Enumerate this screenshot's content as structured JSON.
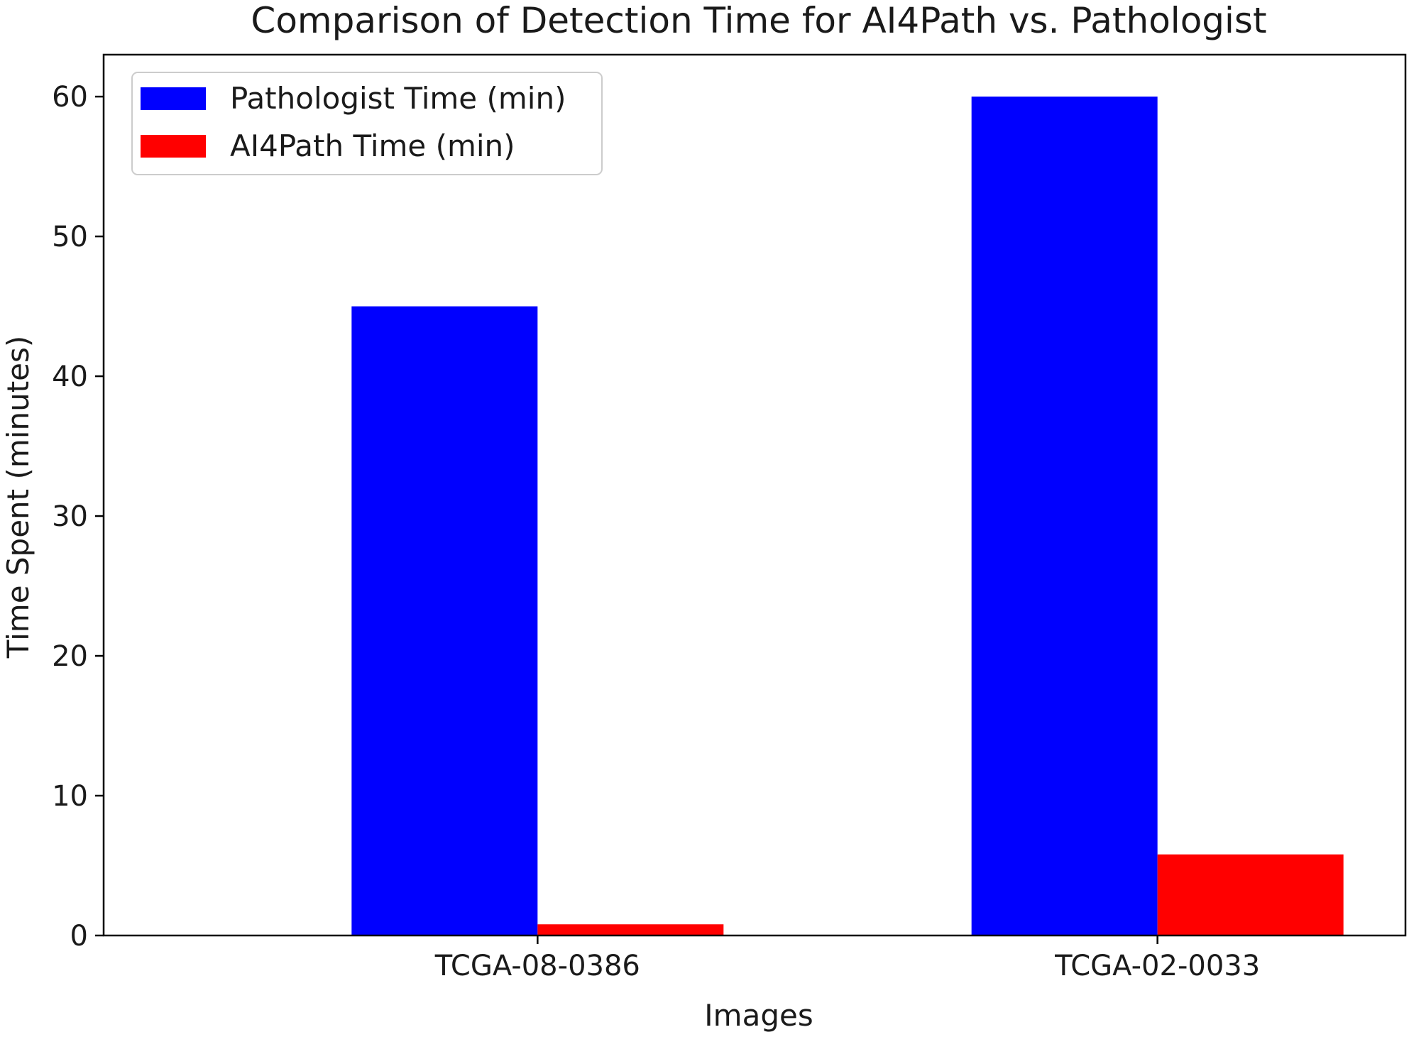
{
  "chart_data": {
    "type": "bar",
    "title": "Comparison of Detection Time for AI4Path vs. Pathologist",
    "xlabel": "Images",
    "ylabel": "Time Spent (minutes)",
    "categories": [
      "TCGA-08-0386",
      "TCGA-02-0033"
    ],
    "series": [
      {
        "name": "Pathologist Time (min)",
        "values": [
          45,
          60
        ],
        "color": "#0000ff"
      },
      {
        "name": "AI4Path Time (min)",
        "values": [
          0.8,
          5.8
        ],
        "color": "#ff0000"
      }
    ],
    "ylim": [
      0,
      63
    ],
    "yticks": [
      0,
      10,
      20,
      30,
      40,
      50,
      60
    ],
    "grid": false,
    "legend_position": "top-left"
  }
}
